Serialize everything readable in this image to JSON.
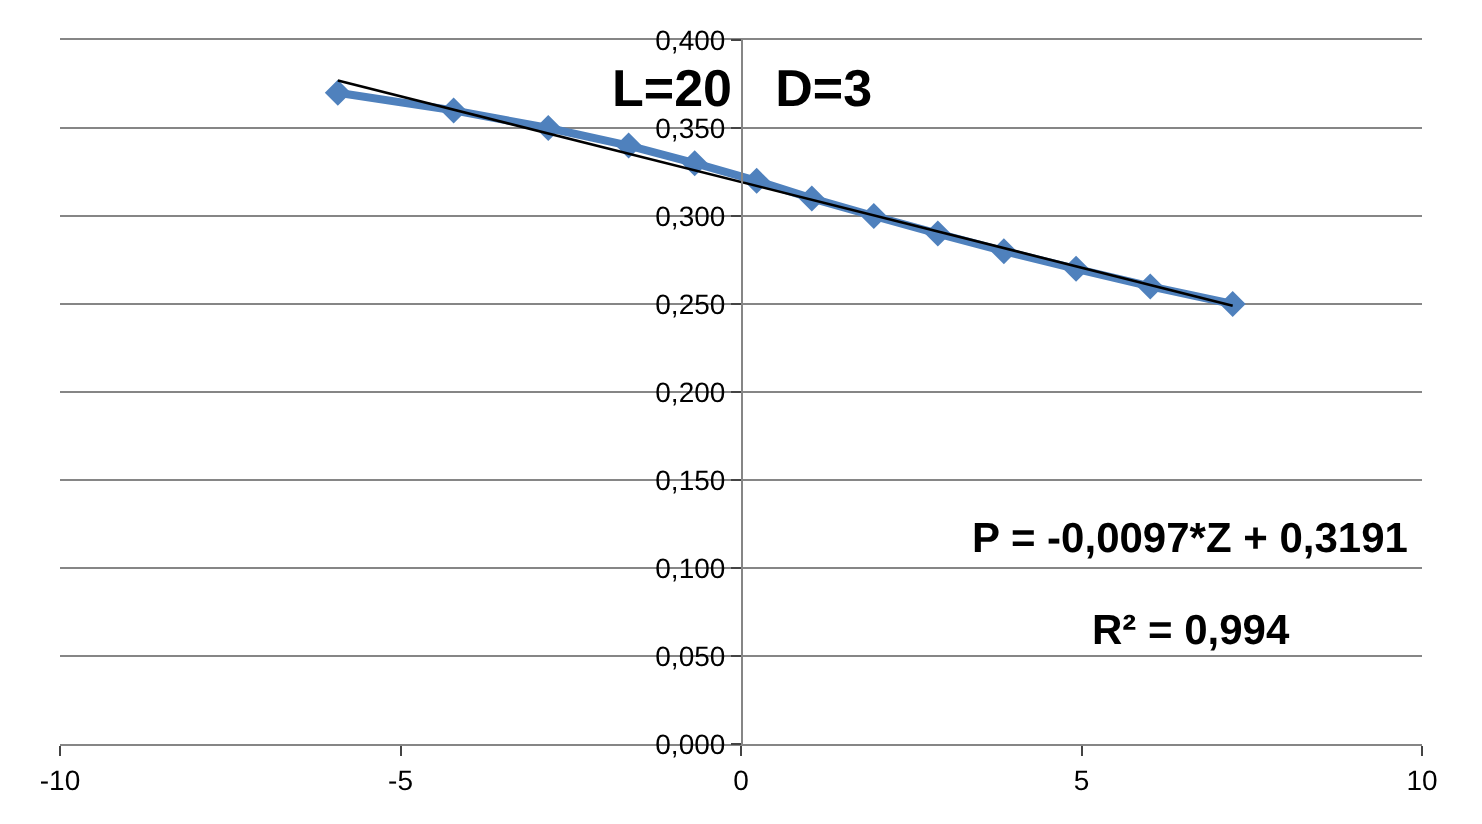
{
  "chart_data": {
    "type": "line",
    "annotations": [
      "L=20   D=3",
      "P = -0,0097*Z + 0,3191",
      "R² = 0,994"
    ],
    "series": [
      {
        "color": "#4f81bd",
        "marker": "diamond",
        "x": [
          -5.92,
          -4.22,
          -2.83,
          -1.65,
          -0.68,
          0.23,
          1.04,
          1.95,
          2.89,
          3.86,
          4.92,
          6.01,
          7.22
        ],
        "values": [
          0.37,
          0.36,
          0.35,
          0.34,
          0.33,
          0.32,
          0.31,
          0.3,
          0.29,
          0.28,
          0.27,
          0.26,
          0.25
        ]
      },
      {
        "color": "#000000",
        "marker": "none",
        "x": [
          -5.92,
          7.22
        ],
        "values": [
          0.377,
          0.249
        ]
      }
    ],
    "xlim": [
      -10,
      10
    ],
    "xticks": [
      -10,
      -5,
      0,
      5,
      10
    ],
    "ylim": [
      0,
      0.4
    ],
    "yticks": [
      {
        "value": 0,
        "label": "0,000"
      },
      {
        "value": 0.05,
        "label": "0,050"
      },
      {
        "value": 0.1,
        "label": "0,100"
      },
      {
        "value": 0.15,
        "label": "0,150"
      },
      {
        "value": 0.2,
        "label": "0,200"
      },
      {
        "value": 0.25,
        "label": "0,250"
      },
      {
        "value": 0.3,
        "label": "0,300"
      },
      {
        "value": 0.35,
        "label": "0,350"
      },
      {
        "value": 0.4,
        "label": "0,400"
      }
    ],
    "grid": "y"
  }
}
